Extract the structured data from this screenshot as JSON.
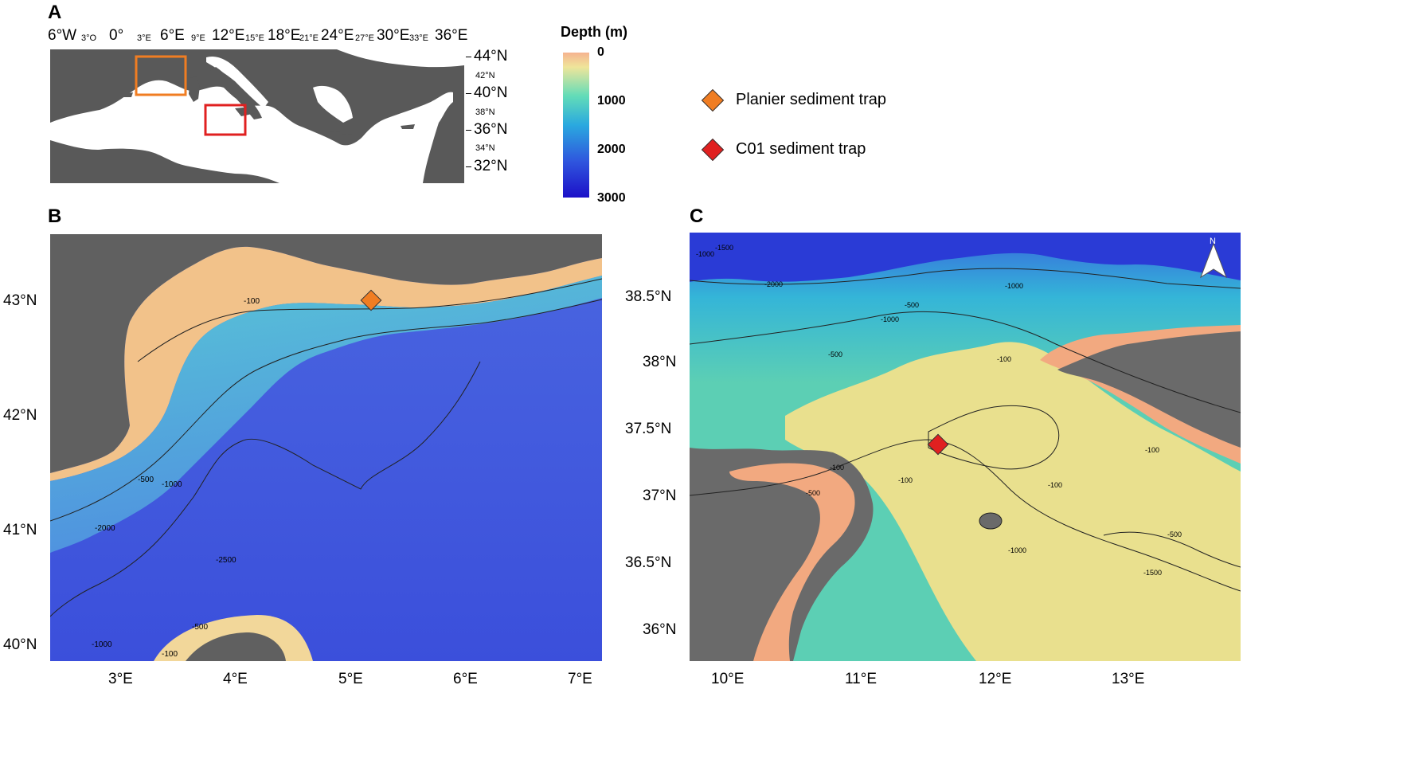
{
  "panels": {
    "a": {
      "letter": "A",
      "lon_ticks_major": [
        "6°W",
        "0°",
        "6°E",
        "12°E",
        "18°E",
        "24°E",
        "30°E",
        "36°E"
      ],
      "lon_ticks_minor": [
        "3°O",
        "3°E",
        "9°E",
        "15°E",
        "21°E",
        "27°E",
        "33°E"
      ],
      "lat_ticks_major": [
        "44°N",
        "40°N",
        "36°N",
        "32°N"
      ],
      "lat_ticks_minor": [
        "42°N",
        "38°N",
        "34°N"
      ],
      "boxes": [
        {
          "name": "Planier study area",
          "color": "#f07d22"
        },
        {
          "name": "C01 study area",
          "color": "#e02020"
        }
      ]
    },
    "b": {
      "letter": "B",
      "lon_ticks": [
        "3°E",
        "4°E",
        "5°E",
        "6°E",
        "7°E"
      ],
      "lat_ticks": [
        "43°N",
        "42°N",
        "41°N",
        "40°N"
      ],
      "contour_labels": [
        "-100",
        "-500",
        "-1000",
        "-2000",
        "-2500",
        "-1000",
        "-100",
        "-500"
      ],
      "site_marker_color": "#f07d22"
    },
    "c": {
      "letter": "C",
      "lon_ticks": [
        "10°E",
        "11°E",
        "12°E",
        "13°E"
      ],
      "lat_ticks": [
        "38.5°N",
        "38°N",
        "37.5°N",
        "37°N",
        "36.5°N",
        "36°N"
      ],
      "contour_labels": [
        "-1000",
        "-1500",
        "-2000",
        "-1000",
        "-500",
        "-500",
        "-1000",
        "-100",
        "-100",
        "-500",
        "-100",
        "-100",
        "-500",
        "-1000",
        "-1500",
        "-100"
      ],
      "north_arrow_label": "N",
      "site_marker_color": "#e02020"
    }
  },
  "colorbar": {
    "title": "Depth (m)",
    "ticks": [
      "0",
      "1000",
      "2000",
      "3000"
    ],
    "colors": [
      "#f6b38f",
      "#efe59a",
      "#62dcb8",
      "#2aa9df",
      "#2f56de",
      "#1c10c8"
    ]
  },
  "legend": [
    {
      "label": "Planier sediment trap",
      "color": "#f07d22"
    },
    {
      "label": "C01  sediment trap",
      "color": "#e02020"
    }
  ]
}
